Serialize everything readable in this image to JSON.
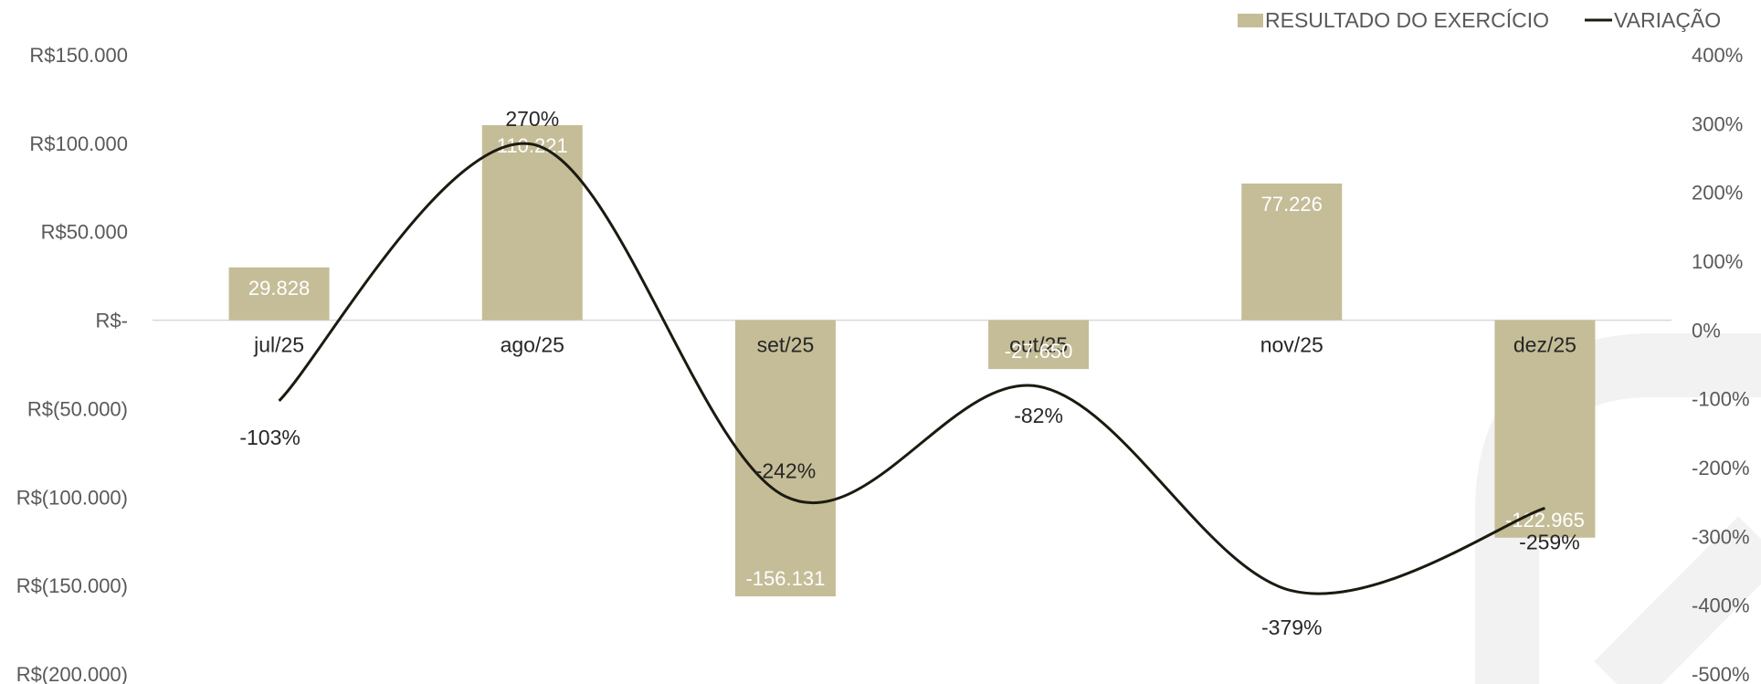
{
  "chart_data": {
    "type": "bar",
    "categories": [
      "jul/25",
      "ago/25",
      "set/25",
      "out/25",
      "nov/25",
      "dez/25"
    ],
    "series": [
      {
        "name": "RESULTADO DO EXERCÍCIO",
        "type": "bar",
        "axis": "left",
        "color": "#c4bd97",
        "values": [
          29828,
          110221,
          -156131,
          -27650,
          77226,
          -122965
        ],
        "labels": [
          "29.828",
          "110.221",
          "-156.131",
          "-27.650",
          "77.226",
          "-122.965"
        ]
      },
      {
        "name": "VARIAÇÃO",
        "type": "line",
        "axis": "right",
        "color": "#1c1a10",
        "values": [
          -103,
          270,
          -242,
          -82,
          -379,
          -259
        ],
        "labels": [
          "-103%",
          "270%",
          "-242%",
          "-82%",
          "-379%",
          "-259%"
        ]
      }
    ],
    "y_left": {
      "range": [
        -200000,
        150000
      ],
      "ticks": [
        150000,
        100000,
        50000,
        0,
        -50000,
        -100000,
        -150000,
        -200000
      ],
      "tick_labels": [
        "R$150.000",
        "R$100.000",
        "R$50.000",
        "R$-",
        "R$(50.000)",
        "R$(100.000)",
        "R$(150.000)",
        "R$(200.000)"
      ]
    },
    "y_right": {
      "range": [
        -500,
        400
      ],
      "ticks": [
        400,
        300,
        200,
        100,
        0,
        -100,
        -200,
        -300,
        -400,
        -500
      ],
      "tick_labels": [
        "400%",
        "300%",
        "200%",
        "100%",
        "0%",
        "-100%",
        "-200%",
        "-300%",
        "-400%",
        "-500%"
      ]
    },
    "legend_position": "top-right",
    "grid": false,
    "colors": {
      "bar": "#c4bd97",
      "line": "#1c1a10",
      "axis": "#d9d9d9"
    }
  }
}
